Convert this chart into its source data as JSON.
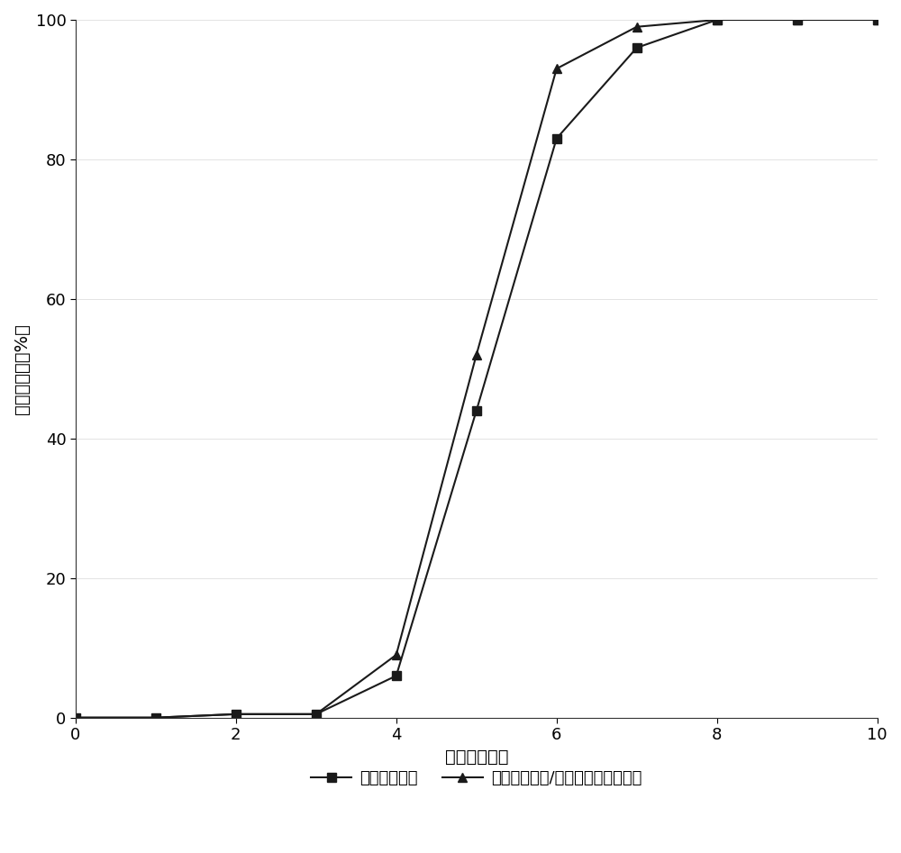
{
  "series1_label": "水溶性致孔剂",
  "series2_label": "水溶性致孔剂/非水溶性致孔剂混合",
  "series1_x": [
    0,
    1,
    2,
    3,
    4,
    5,
    6,
    7,
    8,
    9,
    10
  ],
  "series1_y": [
    0,
    0,
    0.5,
    0.5,
    6,
    44,
    83,
    96,
    100,
    100,
    100
  ],
  "series2_x": [
    0,
    1,
    2,
    3,
    4,
    5,
    6,
    7,
    8,
    9,
    10
  ],
  "series2_y": [
    0,
    0,
    0.5,
    0.5,
    9,
    52,
    93,
    99,
    100,
    100,
    100
  ],
  "series1_color": "#1a1a1a",
  "series2_color": "#1a1a1a",
  "xlabel": "时间（小时）",
  "ylabel": "累积释放度（%）",
  "xlim": [
    0,
    10
  ],
  "ylim": [
    0,
    100
  ],
  "xticks": [
    0,
    2,
    4,
    6,
    8,
    10
  ],
  "yticks": [
    0,
    20,
    40,
    60,
    80,
    100
  ],
  "background_color": "#ffffff",
  "plot_background": "#ffffff",
  "linewidth": 1.5,
  "markersize": 7
}
